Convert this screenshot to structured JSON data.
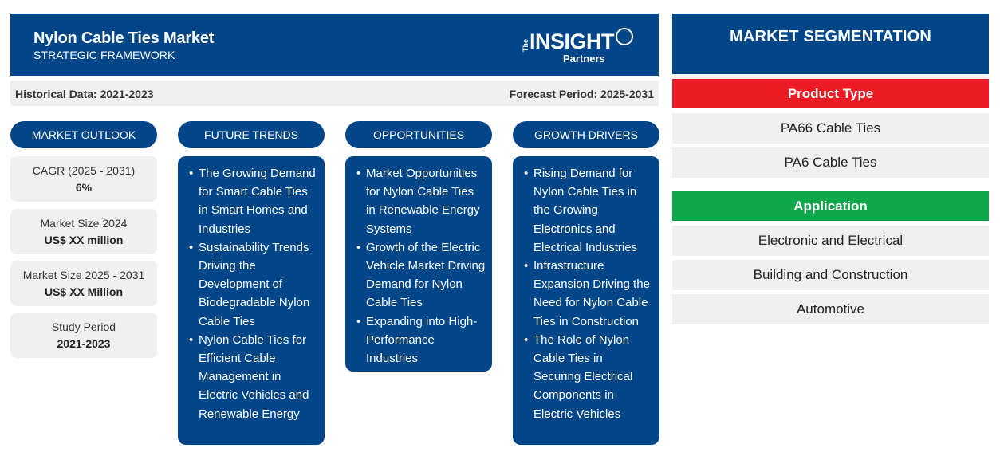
{
  "header": {
    "title": "Nylon Cable Ties Market",
    "subtitle": "STRATEGIC FRAMEWORK",
    "logo": {
      "the": "The",
      "main": "INSIGHT",
      "partners": "Partners"
    }
  },
  "periods": {
    "historical": "Historical Data: 2021-2023",
    "forecast": "Forecast Period: 2025-2031"
  },
  "columns": {
    "outlook": "MARKET OUTLOOK",
    "trends": "FUTURE TRENDS",
    "opportunities": "OPPORTUNITIES",
    "drivers": "GROWTH DRIVERS"
  },
  "outlook": [
    {
      "label": "CAGR (2025 - 2031)",
      "value": "6%"
    },
    {
      "label": "Market Size 2024",
      "value": "US$ XX million"
    },
    {
      "label": "Market Size 2025 - 2031",
      "value": "US$ XX Million"
    },
    {
      "label": "Study Period",
      "value": "2021-2023"
    }
  ],
  "trends": [
    "The Growing Demand for Smart Cable Ties in Smart Homes and Industries",
    "Sustainability Trends Driving the Development of Biodegradable Nylon Cable Ties",
    "Nylon Cable Ties for Efficient Cable Management in Electric Vehicles and Renewable Energy"
  ],
  "opportunities": [
    "Market Opportunities for Nylon Cable Ties in Renewable Energy Systems",
    "Growth of the Electric Vehicle Market Driving Demand for Nylon Cable Ties",
    "Expanding into High-Performance Industries"
  ],
  "drivers": [
    "Rising Demand for Nylon Cable Ties in the Growing Electronics and Electrical Industries",
    "Infrastructure Expansion Driving the Need for Nylon Cable Ties in Construction",
    "The Role of Nylon Cable Ties in Securing Electrical Components in Electric Vehicles"
  ],
  "segmentation": {
    "title": "MARKET SEGMENTATION",
    "product_type": {
      "label": "Product Type",
      "color": "#ed1c24",
      "items": [
        "PA66 Cable Ties",
        "PA6 Cable Ties"
      ]
    },
    "application": {
      "label": "Application",
      "color": "#0da84a",
      "items": [
        "Electronic and Electrical",
        "Building and Construction",
        "Automotive"
      ]
    }
  },
  "colors": {
    "primary": "#004688",
    "panel": "#f0f0f0"
  }
}
